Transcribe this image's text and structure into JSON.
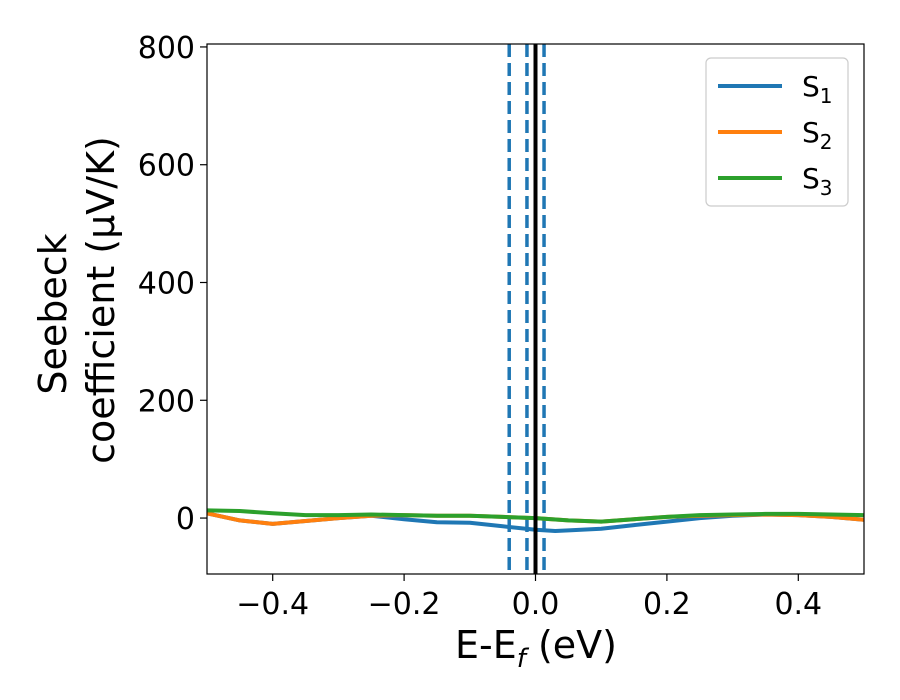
{
  "chart_data": {
    "type": "line",
    "xlabel": "E-E",
    "xlabel_sub": "f",
    "xlabel_unit": " (eV)",
    "ylabel_line1": "Seebeck",
    "ylabel_line2": "coefficient  (μV/K)",
    "xlim": [
      -0.5,
      0.5
    ],
    "ylim": [
      -95,
      805
    ],
    "xticks": [
      -0.4,
      -0.2,
      0.0,
      0.2,
      0.4
    ],
    "xtick_labels": [
      "−0.4",
      "−0.2",
      "0.0",
      "0.2",
      "0.4"
    ],
    "yticks": [
      0,
      200,
      400,
      600,
      800
    ],
    "ytick_labels": [
      "0",
      "200",
      "400",
      "600",
      "800"
    ],
    "grid": false,
    "legend_position": "top-right",
    "vertical_lines": [
      {
        "x": -0.04,
        "style": "dashed",
        "color": "#1f77b4"
      },
      {
        "x": -0.013,
        "style": "dashed",
        "color": "#1f77b4"
      },
      {
        "x": 0.013,
        "style": "dashed",
        "color": "#1f77b4"
      },
      {
        "x": 0.0,
        "style": "solid",
        "color": "#000000"
      }
    ],
    "series": [
      {
        "name": "S",
        "sub": "1",
        "color": "#1f77b4",
        "x": [
          -0.5,
          -0.45,
          -0.4,
          -0.35,
          -0.3,
          -0.25,
          -0.2,
          -0.15,
          -0.1,
          -0.05,
          0.0,
          0.03,
          0.05,
          0.1,
          0.15,
          0.2,
          0.25,
          0.3,
          0.35,
          0.4,
          0.45,
          0.5
        ],
        "y": [
          8,
          -4,
          -10,
          -5,
          0,
          4,
          -2,
          -7,
          -8,
          -14,
          -20,
          -22,
          -21,
          -18,
          -12,
          -6,
          0,
          4,
          6,
          5,
          2,
          -3
        ]
      },
      {
        "name": "S",
        "sub": "2",
        "color": "#ff7f0e",
        "x": [
          -0.5,
          -0.45,
          -0.4,
          -0.35,
          -0.3,
          -0.25,
          -0.2,
          -0.15,
          -0.1,
          -0.05,
          0.0,
          0.05,
          0.1,
          0.15,
          0.2,
          0.25,
          0.3,
          0.35,
          0.4,
          0.45,
          0.5
        ],
        "y": [
          8,
          -4,
          -10,
          -5,
          0,
          4,
          5,
          4,
          4,
          2,
          0,
          -4,
          -6,
          -2,
          2,
          4,
          5,
          6,
          5,
          2,
          -3
        ]
      },
      {
        "name": "S",
        "sub": "3",
        "color": "#2ca02c",
        "x": [
          -0.5,
          -0.45,
          -0.4,
          -0.35,
          -0.3,
          -0.25,
          -0.2,
          -0.15,
          -0.1,
          -0.05,
          0.0,
          0.05,
          0.1,
          0.15,
          0.2,
          0.25,
          0.3,
          0.35,
          0.4,
          0.45,
          0.5
        ],
        "y": [
          13,
          12,
          8,
          5,
          5,
          6,
          5,
          4,
          4,
          2,
          0,
          -4,
          -6,
          -2,
          2,
          5,
          6,
          7,
          7,
          6,
          5
        ]
      }
    ]
  }
}
